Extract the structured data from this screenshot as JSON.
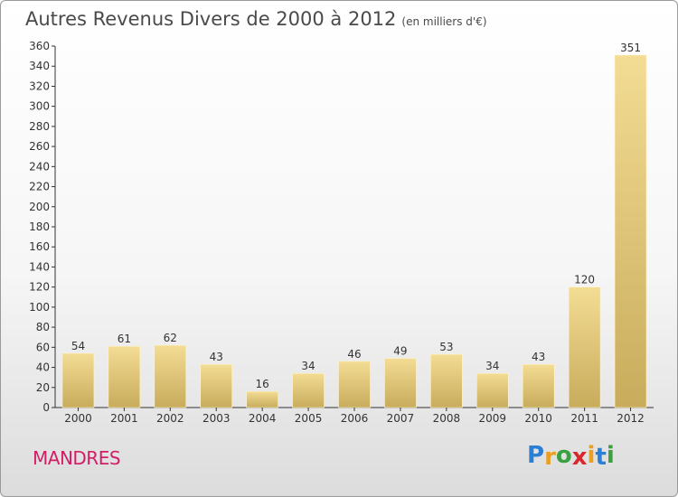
{
  "header": {
    "title": "Autres Revenus Divers de 2000 à 2012",
    "unit": "(en milliers d'€)"
  },
  "footer": {
    "place": "MANDRES",
    "logo_letters": [
      "P",
      "r",
      "o",
      "x",
      "i",
      "t",
      "i"
    ],
    "logo_colors": [
      "#2b7fd4",
      "#e8a020",
      "#3aa040",
      "#d8282e",
      "#e8a020",
      "#2b7fd4",
      "#3aa040"
    ]
  },
  "colors": {
    "bar_light": "#f3dc94",
    "bar_dark": "#c8ac5c",
    "place": "#d21e66"
  },
  "chart_data": {
    "type": "bar",
    "categories": [
      "2000",
      "2001",
      "2002",
      "2003",
      "2004",
      "2005",
      "2006",
      "2007",
      "2008",
      "2009",
      "2010",
      "2011",
      "2012"
    ],
    "values": [
      54,
      61,
      62,
      43,
      16,
      34,
      46,
      49,
      53,
      34,
      43,
      120,
      351
    ],
    "data_labels": [
      "54",
      "61",
      "62",
      "43",
      "16",
      "34",
      "46",
      "49",
      "53",
      "34",
      "43",
      "120",
      "351"
    ],
    "ylim": [
      0,
      360
    ],
    "yticks": [
      "0",
      "20",
      "40",
      "60",
      "80",
      "100",
      "120",
      "140",
      "160",
      "180",
      "200",
      "220",
      "240",
      "260",
      "280",
      "300",
      "320",
      "340",
      "360"
    ],
    "grid": false,
    "legend": "none"
  }
}
